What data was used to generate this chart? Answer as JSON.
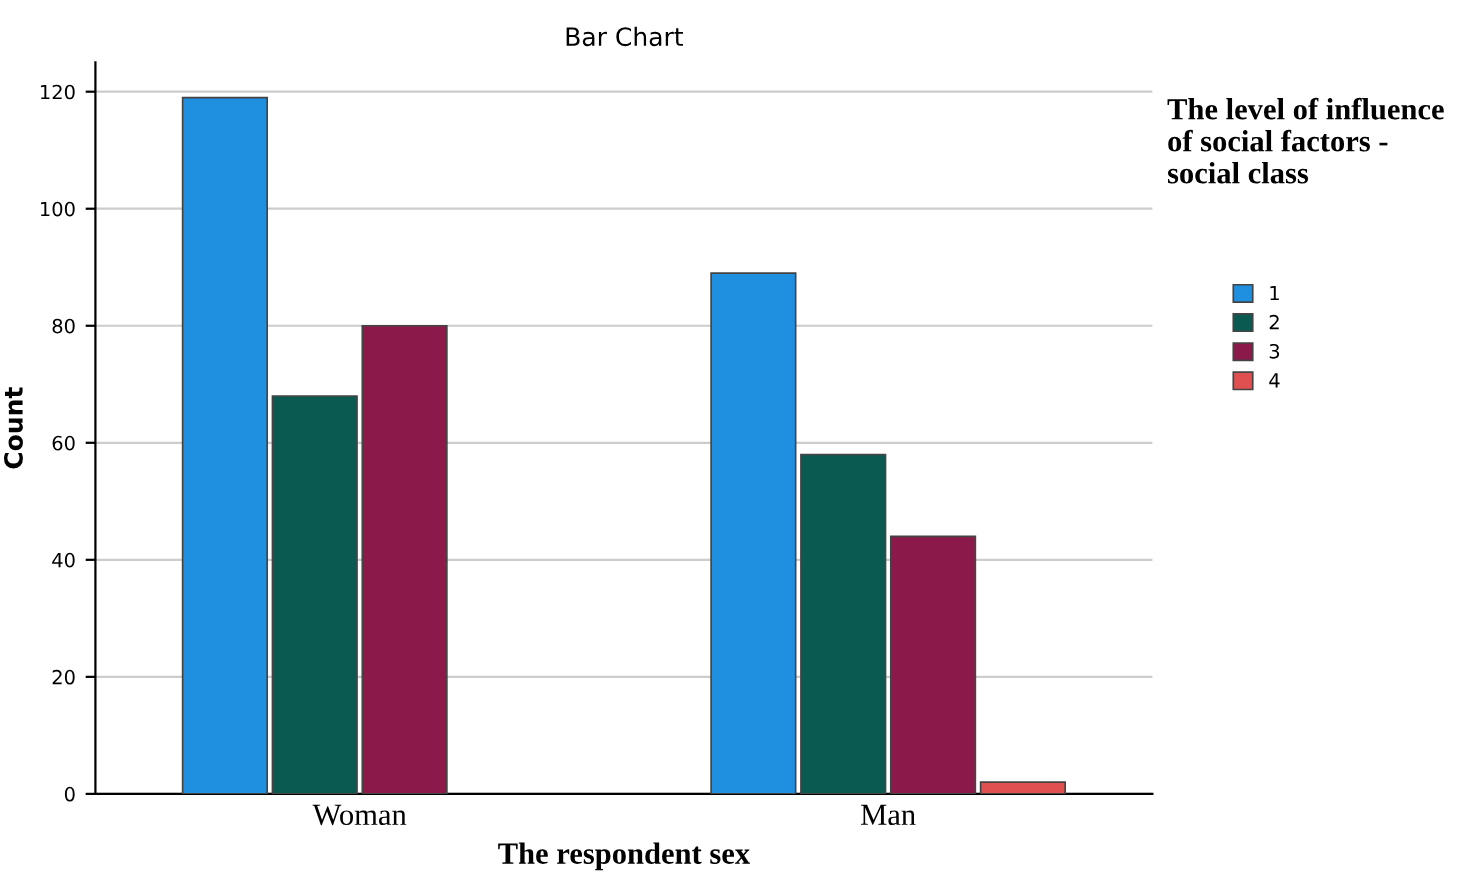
{
  "chart_data": {
    "type": "bar",
    "title": "Bar Chart",
    "xlabel": "The respondent sex",
    "ylabel": "Count",
    "legend_title": "The level of influence of social factors - social class",
    "categories": [
      "Woman",
      "Man"
    ],
    "series": [
      {
        "name": "1",
        "color": "#1f8fe0",
        "values": [
          119,
          89
        ]
      },
      {
        "name": "2",
        "color": "#0b5a52",
        "values": [
          68,
          58
        ]
      },
      {
        "name": "3",
        "color": "#8b1a4a",
        "values": [
          80,
          44
        ]
      },
      {
        "name": "4",
        "color": "#e05050",
        "values": [
          null,
          2
        ]
      }
    ],
    "ylim": [
      0,
      125
    ],
    "yticks": [
      0,
      20,
      40,
      60,
      80,
      100,
      120
    ],
    "grid": "y",
    "legend": "right"
  }
}
